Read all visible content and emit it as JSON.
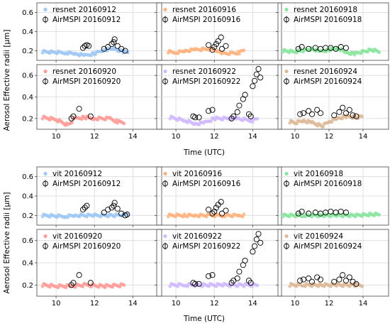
{
  "figure": {
    "ylabel": "Aerosol Effective radii [μm]",
    "xlabel": "Time (UTC)"
  },
  "colors": {
    "20160912": "#a1c9f4",
    "20160916": "#ffb482",
    "20160918": "#8de5a1",
    "20160920": "#ff9f9b",
    "20160922": "#d0bbff",
    "20160924": "#debb9b",
    "airmspi": "#000000"
  },
  "chart_data": [
    {
      "type": "scatter",
      "group": "resnet",
      "date": "20160912",
      "legend": [
        "resnet 20160912",
        "AirMSPI 20160912"
      ],
      "xlim": [
        9,
        15.5
      ],
      "ylim": [
        0.1,
        0.7
      ],
      "yticks": [
        0.2,
        0.4,
        0.6
      ],
      "xticks": [
        10,
        12,
        14
      ],
      "line": [
        [
          9.3,
          0.19
        ],
        [
          10.5,
          0.18
        ],
        [
          11.0,
          0.17
        ],
        [
          11.5,
          0.15
        ],
        [
          12.0,
          0.17
        ],
        [
          12.5,
          0.21
        ],
        [
          13.0,
          0.22
        ],
        [
          13.5,
          0.19
        ],
        [
          13.8,
          0.18
        ]
      ],
      "airmspi": [
        [
          11.4,
          0.23
        ],
        [
          11.5,
          0.25
        ],
        [
          11.6,
          0.26
        ],
        [
          11.7,
          0.25
        ],
        [
          12.5,
          0.22
        ],
        [
          12.7,
          0.24
        ],
        [
          12.9,
          0.27
        ],
        [
          13.0,
          0.29
        ],
        [
          13.05,
          0.32
        ],
        [
          13.2,
          0.25
        ],
        [
          13.4,
          0.22
        ],
        [
          13.6,
          0.2
        ]
      ]
    },
    {
      "type": "scatter",
      "group": "resnet",
      "date": "20160916",
      "legend": [
        "resnet 20160916",
        "AirMSPI 20160916"
      ],
      "xlim": [
        9,
        15.5
      ],
      "ylim": [
        0.1,
        0.7
      ],
      "yticks": [
        0.2,
        0.4,
        0.6
      ],
      "xticks": [
        10,
        12,
        14
      ],
      "line": [
        [
          9.6,
          0.19
        ],
        [
          10.0,
          0.18
        ],
        [
          10.5,
          0.2
        ],
        [
          11.0,
          0.21
        ],
        [
          11.7,
          0.22
        ],
        [
          12.2,
          0.2
        ],
        [
          12.5,
          0.17
        ],
        [
          13.3,
          0.18
        ],
        [
          13.6,
          0.21
        ]
      ],
      "airmspi": [
        [
          11.7,
          0.26
        ],
        [
          11.9,
          0.21
        ],
        [
          12.0,
          0.24
        ],
        [
          12.1,
          0.27
        ],
        [
          12.2,
          0.3
        ],
        [
          12.35,
          0.34
        ],
        [
          12.4,
          0.22
        ],
        [
          12.6,
          0.25
        ]
      ]
    },
    {
      "type": "scatter",
      "group": "resnet",
      "date": "20160918",
      "legend": [
        "resnet 20160918",
        "AirMSPI 20160918"
      ],
      "xlim": [
        9,
        15.5
      ],
      "ylim": [
        0.1,
        0.7
      ],
      "yticks": [
        0.2,
        0.4,
        0.6
      ],
      "xticks": [
        10,
        12,
        14
      ],
      "line": [
        [
          9.3,
          0.2
        ],
        [
          10.0,
          0.19
        ],
        [
          11.0,
          0.22
        ],
        [
          11.5,
          0.19
        ],
        [
          12.0,
          0.21
        ],
        [
          12.5,
          0.23
        ],
        [
          13.0,
          0.18
        ],
        [
          13.5,
          0.17
        ],
        [
          14.5,
          0.21
        ],
        [
          15.0,
          0.19
        ]
      ],
      "airmspi": [
        [
          10.2,
          0.22
        ],
        [
          10.4,
          0.24
        ],
        [
          10.8,
          0.22
        ],
        [
          11.2,
          0.23
        ],
        [
          11.5,
          0.22
        ],
        [
          11.8,
          0.23
        ],
        [
          12.1,
          0.23
        ],
        [
          12.4,
          0.22
        ],
        [
          12.7,
          0.24
        ],
        [
          13.0,
          0.23
        ]
      ]
    },
    {
      "type": "scatter",
      "group": "resnet",
      "date": "20160920",
      "legend": [
        "resnet 20160920",
        "AirMSPI 20160920"
      ],
      "xlim": [
        9,
        15.5
      ],
      "ylim": [
        0.1,
        0.7
      ],
      "yticks": [
        0.2,
        0.4,
        0.6
      ],
      "xticks": [
        10,
        12,
        14
      ],
      "line": [
        [
          9.3,
          0.21
        ],
        [
          10.0,
          0.19
        ],
        [
          10.6,
          0.14
        ],
        [
          11.0,
          0.2
        ],
        [
          11.5,
          0.21
        ],
        [
          12.0,
          0.2
        ],
        [
          12.8,
          0.2
        ],
        [
          13.2,
          0.17
        ],
        [
          13.6,
          0.16
        ]
      ],
      "airmspi": [
        [
          10.8,
          0.2
        ],
        [
          10.9,
          0.22
        ],
        [
          11.2,
          0.29
        ],
        [
          11.8,
          0.22
        ]
      ]
    },
    {
      "type": "scatter",
      "group": "resnet",
      "date": "20160922",
      "legend": [
        "resnet 20160922",
        "AirMSPI 20160922"
      ],
      "xlim": [
        9,
        15.5
      ],
      "ylim": [
        0.1,
        0.7
      ],
      "yticks": [
        0.2,
        0.4,
        0.6
      ],
      "xticks": [
        10,
        12,
        14
      ],
      "line": [
        [
          9.7,
          0.21
        ],
        [
          10.5,
          0.18
        ],
        [
          11.0,
          0.15
        ],
        [
          11.5,
          0.16
        ],
        [
          12.0,
          0.2
        ],
        [
          12.7,
          0.2
        ],
        [
          13.2,
          0.2
        ],
        [
          14.0,
          0.18
        ],
        [
          14.3,
          0.2
        ]
      ],
      "airmspi": [
        [
          10.9,
          0.22
        ],
        [
          11.0,
          0.21
        ],
        [
          11.2,
          0.21
        ],
        [
          11.7,
          0.27
        ],
        [
          11.9,
          0.28
        ],
        [
          12.9,
          0.2
        ],
        [
          13.0,
          0.22
        ],
        [
          13.2,
          0.26
        ],
        [
          13.3,
          0.32
        ],
        [
          13.5,
          0.38
        ],
        [
          13.6,
          0.42
        ],
        [
          13.8,
          0.24
        ],
        [
          13.9,
          0.22
        ],
        [
          14.0,
          0.5
        ],
        [
          14.1,
          0.55
        ],
        [
          14.2,
          0.61
        ],
        [
          14.3,
          0.66
        ],
        [
          14.4,
          0.58
        ]
      ]
    },
    {
      "type": "scatter",
      "group": "resnet",
      "date": "20160924",
      "legend": [
        "resnet 20160924",
        "AirMSPI 20160924"
      ],
      "xlim": [
        9,
        15.5
      ],
      "ylim": [
        0.1,
        0.7
      ],
      "yticks": [
        0.2,
        0.4,
        0.6
      ],
      "xticks": [
        10,
        12,
        14
      ],
      "line": [
        [
          9.7,
          0.17
        ],
        [
          10.0,
          0.16
        ],
        [
          10.5,
          0.18
        ],
        [
          11.0,
          0.16
        ],
        [
          11.6,
          0.13
        ],
        [
          12.0,
          0.17
        ],
        [
          12.5,
          0.2
        ],
        [
          13.0,
          0.22
        ],
        [
          13.6,
          0.21
        ],
        [
          14.0,
          0.22
        ]
      ],
      "airmspi": [
        [
          10.3,
          0.24
        ],
        [
          10.5,
          0.25
        ],
        [
          10.8,
          0.27
        ],
        [
          11.0,
          0.24
        ],
        [
          11.3,
          0.28
        ],
        [
          11.5,
          0.25
        ],
        [
          12.3,
          0.23
        ],
        [
          12.6,
          0.26
        ],
        [
          12.8,
          0.3
        ],
        [
          13.0,
          0.25
        ],
        [
          13.2,
          0.28
        ],
        [
          13.4,
          0.23
        ],
        [
          13.6,
          0.22
        ]
      ]
    },
    {
      "type": "scatter",
      "group": "vit",
      "date": "20160912",
      "legend": [
        "vit 20160912",
        "AirMSPI 20160912"
      ],
      "xlim": [
        9,
        15.5
      ],
      "ylim": [
        0.1,
        0.7
      ],
      "yticks": [
        0.2,
        0.4,
        0.6
      ],
      "xticks": [
        10,
        12,
        14
      ],
      "line": [
        [
          9.3,
          0.2
        ],
        [
          10.5,
          0.19
        ],
        [
          11.0,
          0.2
        ],
        [
          12.0,
          0.2
        ],
        [
          13.0,
          0.2
        ],
        [
          13.8,
          0.21
        ]
      ],
      "airmspi": [
        [
          11.4,
          0.26
        ],
        [
          11.5,
          0.28
        ],
        [
          11.6,
          0.3
        ],
        [
          12.5,
          0.23
        ],
        [
          12.7,
          0.26
        ],
        [
          12.9,
          0.28
        ],
        [
          13.0,
          0.3
        ],
        [
          13.05,
          0.33
        ],
        [
          13.2,
          0.27
        ],
        [
          13.4,
          0.22
        ],
        [
          13.6,
          0.2
        ],
        [
          13.7,
          0.21
        ]
      ]
    },
    {
      "type": "scatter",
      "group": "vit",
      "date": "20160916",
      "legend": [
        "vit 20160916",
        "AirMSPI 20160916"
      ],
      "xlim": [
        9,
        15.5
      ],
      "ylim": [
        0.1,
        0.7
      ],
      "yticks": [
        0.2,
        0.4,
        0.6
      ],
      "xticks": [
        10,
        12,
        14
      ],
      "line": [
        [
          9.6,
          0.2
        ],
        [
          10.5,
          0.2
        ],
        [
          11.0,
          0.2
        ],
        [
          11.7,
          0.2
        ],
        [
          12.5,
          0.2
        ],
        [
          13.3,
          0.2
        ],
        [
          13.6,
          0.2
        ]
      ],
      "airmspi": [
        [
          11.7,
          0.26
        ],
        [
          11.9,
          0.22
        ],
        [
          12.0,
          0.24
        ],
        [
          12.1,
          0.28
        ],
        [
          12.2,
          0.31
        ],
        [
          12.35,
          0.34
        ],
        [
          12.4,
          0.22
        ],
        [
          12.6,
          0.25
        ]
      ]
    },
    {
      "type": "scatter",
      "group": "vit",
      "date": "20160918",
      "legend": [
        "vit 20160918",
        "AirMSPI 20160918"
      ],
      "xlim": [
        9,
        15.5
      ],
      "ylim": [
        0.1,
        0.7
      ],
      "yticks": [
        0.2,
        0.4,
        0.6
      ],
      "xticks": [
        10,
        12,
        14
      ],
      "line": [
        [
          9.3,
          0.2
        ],
        [
          10.5,
          0.2
        ],
        [
          11.5,
          0.2
        ],
        [
          12.5,
          0.2
        ],
        [
          13.5,
          0.2
        ],
        [
          14.5,
          0.21
        ],
        [
          15.0,
          0.21
        ]
      ],
      "airmspi": [
        [
          10.2,
          0.22
        ],
        [
          10.4,
          0.24
        ],
        [
          10.8,
          0.22
        ],
        [
          11.2,
          0.23
        ],
        [
          11.5,
          0.22
        ],
        [
          11.8,
          0.23
        ],
        [
          12.1,
          0.24
        ],
        [
          12.4,
          0.23
        ],
        [
          12.7,
          0.24
        ],
        [
          13.0,
          0.23
        ]
      ]
    },
    {
      "type": "scatter",
      "group": "vit",
      "date": "20160920",
      "legend": [
        "vit 20160920",
        "AirMSPI 20160920"
      ],
      "xlim": [
        9,
        15.5
      ],
      "ylim": [
        0.1,
        0.7
      ],
      "yticks": [
        0.2,
        0.4,
        0.6
      ],
      "xticks": [
        10,
        12,
        14
      ],
      "line": [
        [
          9.3,
          0.2
        ],
        [
          10.0,
          0.19
        ],
        [
          10.8,
          0.19
        ],
        [
          11.5,
          0.2
        ],
        [
          12.5,
          0.19
        ],
        [
          13.6,
          0.2
        ]
      ],
      "airmspi": [
        [
          10.8,
          0.2
        ],
        [
          10.9,
          0.22
        ],
        [
          11.2,
          0.29
        ],
        [
          11.8,
          0.22
        ]
      ]
    },
    {
      "type": "scatter",
      "group": "vit",
      "date": "20160922",
      "legend": [
        "vit 20160922",
        "AirMSPI 20160922"
      ],
      "xlim": [
        9,
        15.5
      ],
      "ylim": [
        0.1,
        0.7
      ],
      "yticks": [
        0.2,
        0.4,
        0.6
      ],
      "xticks": [
        10,
        12,
        14
      ],
      "line": [
        [
          9.7,
          0.2
        ],
        [
          10.5,
          0.2
        ],
        [
          11.5,
          0.2
        ],
        [
          12.5,
          0.2
        ],
        [
          13.5,
          0.2
        ],
        [
          14.3,
          0.2
        ]
      ],
      "airmspi": [
        [
          10.9,
          0.22
        ],
        [
          11.0,
          0.21
        ],
        [
          11.2,
          0.21
        ],
        [
          11.7,
          0.28
        ],
        [
          11.9,
          0.29
        ],
        [
          12.9,
          0.22
        ],
        [
          13.0,
          0.24
        ],
        [
          13.2,
          0.26
        ],
        [
          13.3,
          0.32
        ],
        [
          13.5,
          0.38
        ],
        [
          13.6,
          0.42
        ],
        [
          13.8,
          0.24
        ],
        [
          13.9,
          0.22
        ],
        [
          14.0,
          0.5
        ],
        [
          14.1,
          0.55
        ],
        [
          14.2,
          0.61
        ],
        [
          14.3,
          0.66
        ],
        [
          14.4,
          0.58
        ]
      ]
    },
    {
      "type": "scatter",
      "group": "vit",
      "date": "20160924",
      "legend": [
        "vit 20160924",
        "AirMSPI 20160924"
      ],
      "xlim": [
        9,
        15.5
      ],
      "ylim": [
        0.1,
        0.7
      ],
      "yticks": [
        0.2,
        0.4,
        0.6
      ],
      "xticks": [
        10,
        12,
        14
      ],
      "line": [
        [
          9.7,
          0.2
        ],
        [
          10.5,
          0.2
        ],
        [
          11.5,
          0.2
        ],
        [
          12.5,
          0.2
        ],
        [
          13.5,
          0.2
        ],
        [
          14.0,
          0.2
        ]
      ],
      "airmspi": [
        [
          10.3,
          0.24
        ],
        [
          10.5,
          0.25
        ],
        [
          10.8,
          0.26
        ],
        [
          11.0,
          0.23
        ],
        [
          11.3,
          0.27
        ],
        [
          11.5,
          0.25
        ],
        [
          12.3,
          0.23
        ],
        [
          12.6,
          0.25
        ],
        [
          12.8,
          0.29
        ],
        [
          13.0,
          0.24
        ],
        [
          13.2,
          0.27
        ],
        [
          13.4,
          0.23
        ],
        [
          13.6,
          0.21
        ]
      ]
    }
  ]
}
